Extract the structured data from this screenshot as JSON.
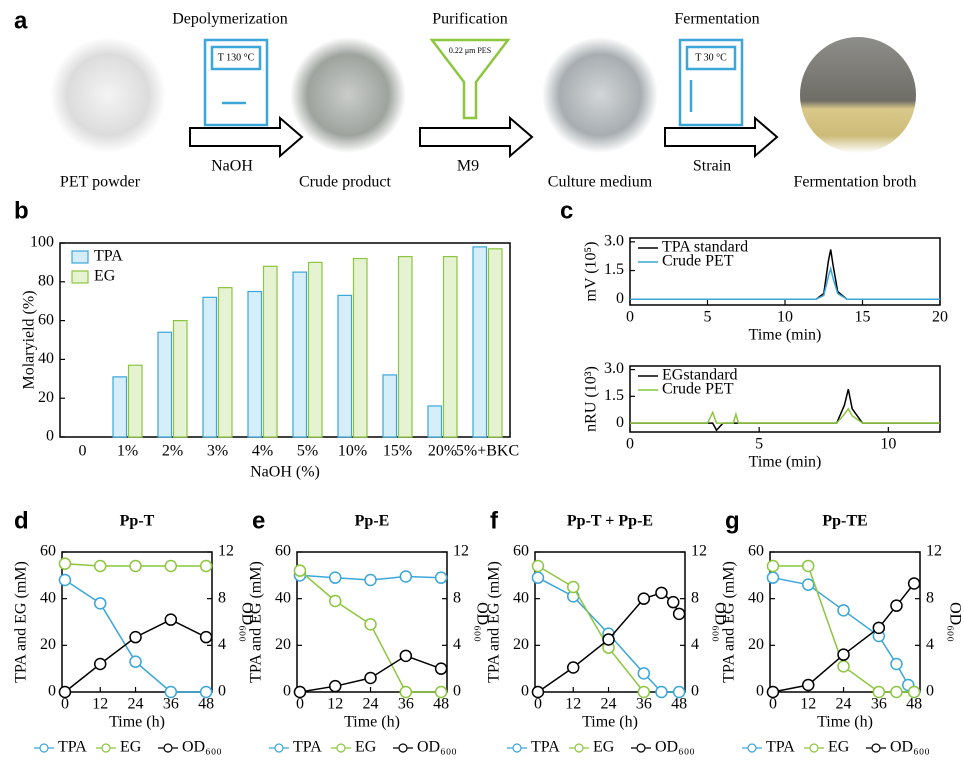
{
  "workflow": {
    "panel": "a",
    "steps": [
      {
        "label": "Depolymerization",
        "device": "T 130 °C",
        "reagent": "NaOH"
      },
      {
        "label": "Purification",
        "device": "0.22 μm PES",
        "reagent": "M9"
      },
      {
        "label": "Fermentation",
        "device": "T 30 °C",
        "reagent": "Strain"
      }
    ],
    "samples": [
      "PET powder",
      "Crude product",
      "Culture medium",
      "Fermentation broth"
    ]
  },
  "chart_data": [
    {
      "type": "bar",
      "panel": "b",
      "categories": [
        "0",
        "1%",
        "2%",
        "3%",
        "4%",
        "5%",
        "10%",
        "15%",
        "20%",
        "5%+BKC"
      ],
      "series": [
        {
          "name": "TPA",
          "color": "#3aa6d9",
          "fill": "#d6eef9",
          "values": [
            0,
            31,
            54,
            72,
            75,
            85,
            73,
            32,
            16,
            98
          ]
        },
        {
          "name": "EG",
          "color": "#8cc63f",
          "fill": "#e6f3d2",
          "values": [
            0,
            37,
            60,
            77,
            88,
            90,
            92,
            93,
            93,
            97
          ]
        }
      ],
      "ylim": [
        0,
        100
      ],
      "yticks": [
        0,
        20,
        40,
        60,
        80,
        100
      ],
      "ylabel": "Molaryield (%)",
      "xlabel": "NaOH (%)",
      "legend": "upper left"
    },
    {
      "type": "line",
      "panel": "c",
      "x": [
        0,
        12,
        12.5,
        12.8,
        12.95,
        13.1,
        13.4,
        14,
        20
      ],
      "series": [
        {
          "name": "TPA standard",
          "color": "#000000",
          "values": [
            0,
            0,
            0.3,
            2.0,
            2.6,
            1.8,
            0.4,
            0,
            0
          ]
        },
        {
          "name": "Crude PET",
          "color": "#3aa6d9",
          "values": [
            0,
            0,
            0.2,
            1.2,
            1.6,
            1.1,
            0.3,
            0,
            0
          ]
        }
      ],
      "xlim": [
        0,
        20
      ],
      "xticks": [
        0,
        5,
        10,
        15,
        20
      ],
      "ylim": [
        -0.3,
        3.2
      ],
      "yticks": [
        0,
        1.5,
        {
          "value": 3,
          "label": "3.0"
        }
      ],
      "xlabel": "Time (min)",
      "ylabel": "mV (10⁵)",
      "legend": "upper left"
    },
    {
      "type": "line",
      "x": [
        0,
        3.0,
        3.2,
        3.35,
        3.6,
        4.0,
        4.1,
        4.2,
        8.0,
        8.3,
        8.45,
        8.6,
        9.0,
        12
      ],
      "series": [
        {
          "name": "EGstandard",
          "color": "#000000",
          "values": [
            0,
            0,
            0,
            -0.4,
            0,
            0,
            0,
            0,
            0,
            1.0,
            1.9,
            0.8,
            0,
            0
          ]
        },
        {
          "name": "Crude PET",
          "color": "#8cc63f",
          "values": [
            0,
            0,
            0.6,
            0,
            0,
            0,
            0.5,
            0,
            0,
            0.5,
            0.8,
            0.4,
            0,
            0
          ]
        }
      ],
      "xlim": [
        0,
        12
      ],
      "xticks": [
        0,
        5,
        10
      ],
      "ylim": [
        -0.5,
        3.2
      ],
      "yticks": [
        0,
        1.5,
        {
          "value": 3,
          "label": "3.0"
        }
      ],
      "xlabel": "Time (min)",
      "ylabel": "nRU (10³)",
      "legend": "upper left"
    },
    {
      "type": "line-markers",
      "panel": "d",
      "title": "Pp-T",
      "series": [
        {
          "name": "TPA",
          "color": "#3aa6d9",
          "x": [
            0,
            12,
            24,
            36,
            48
          ],
          "values": [
            48,
            38,
            13,
            0,
            0
          ]
        },
        {
          "name": "EG",
          "color": "#8cc63f",
          "x": [
            0,
            12,
            24,
            36,
            48
          ],
          "values": [
            55,
            54,
            54,
            54,
            54
          ]
        },
        {
          "name": "OD₆₀₀",
          "color": "#000000",
          "axis": "y2",
          "x": [
            0,
            12,
            24,
            36,
            48
          ],
          "values": [
            0,
            2.4,
            4.7,
            6.2,
            4.7
          ]
        }
      ],
      "xlim": [
        -1,
        50
      ],
      "xticks": [
        0,
        12,
        24,
        36,
        48
      ],
      "ylim": [
        0,
        60
      ],
      "yticks": [
        0,
        20,
        40,
        60
      ],
      "y2lim": [
        0,
        12
      ],
      "y2ticks": [
        0,
        4,
        8,
        12
      ],
      "xlabel": "Time (h)",
      "ylabel": "TPA and EG (mM)",
      "y2label": "OD₆₀₀",
      "legend": "below"
    },
    {
      "type": "line-markers",
      "panel": "e",
      "title": "Pp-E",
      "series": [
        {
          "name": "TPA",
          "color": "#3aa6d9",
          "x": [
            0,
            12,
            24,
            36,
            48
          ],
          "values": [
            50,
            49,
            48,
            49.5,
            49
          ]
        },
        {
          "name": "EG",
          "color": "#8cc63f",
          "x": [
            0,
            12,
            24,
            36,
            48
          ],
          "values": [
            52,
            39,
            29,
            0,
            0
          ]
        },
        {
          "name": "OD₆₀₀",
          "color": "#000000",
          "axis": "y2",
          "x": [
            0,
            12,
            24,
            36,
            48
          ],
          "values": [
            0,
            0.5,
            1.2,
            3.1,
            2
          ]
        }
      ],
      "xlim": [
        -1,
        50
      ],
      "xticks": [
        0,
        12,
        24,
        36,
        48
      ],
      "ylim": [
        0,
        60
      ],
      "yticks": [
        0,
        20,
        40,
        60
      ],
      "y2lim": [
        0,
        12
      ],
      "y2ticks": [
        0,
        4,
        8,
        12
      ],
      "xlabel": "Time (h)",
      "ylabel": "TPA and EG (mM)",
      "y2label": "OD₆₀₀",
      "legend": "below"
    },
    {
      "type": "line-markers",
      "panel": "f",
      "title": "Pp-T + Pp-E",
      "series": [
        {
          "name": "TPA",
          "color": "#3aa6d9",
          "x": [
            0,
            12,
            24,
            36,
            42,
            48
          ],
          "values": [
            49,
            41,
            25,
            8,
            0,
            0
          ]
        },
        {
          "name": "EG",
          "color": "#8cc63f",
          "x": [
            0,
            12,
            24,
            36
          ],
          "values": [
            54,
            45,
            19,
            0
          ]
        },
        {
          "name": "OD₆₀₀",
          "color": "#000000",
          "axis": "y2",
          "x": [
            0,
            12,
            24,
            36,
            42,
            46,
            48
          ],
          "values": [
            0,
            2.1,
            4.5,
            8,
            8.5,
            7.7,
            6.7
          ]
        }
      ],
      "xlim": [
        -1,
        50
      ],
      "xticks": [
        0,
        12,
        24,
        36,
        48
      ],
      "ylim": [
        0,
        60
      ],
      "yticks": [
        0,
        20,
        40,
        60
      ],
      "y2lim": [
        0,
        12
      ],
      "y2ticks": [
        0,
        4,
        8,
        12
      ],
      "xlabel": "Time (h)",
      "ylabel": "TPA and EG (mM)",
      "y2label": "OD₆₀₀",
      "legend": "below"
    },
    {
      "type": "line-markers",
      "panel": "g",
      "title": "Pp-TE",
      "series": [
        {
          "name": "TPA",
          "color": "#3aa6d9",
          "x": [
            0,
            12,
            24,
            36,
            42,
            46,
            48
          ],
          "values": [
            49,
            46,
            35,
            24,
            12,
            3,
            0
          ]
        },
        {
          "name": "EG",
          "color": "#8cc63f",
          "x": [
            0,
            12,
            24,
            36,
            42,
            48
          ],
          "values": [
            54,
            54,
            11,
            0,
            0,
            0
          ]
        },
        {
          "name": "OD₆₀₀",
          "color": "#000000",
          "axis": "y2",
          "x": [
            0,
            12,
            24,
            36,
            42,
            48
          ],
          "values": [
            0,
            0.6,
            3.2,
            5.5,
            7.4,
            9.3
          ]
        }
      ],
      "xlim": [
        -1,
        50
      ],
      "xticks": [
        0,
        12,
        24,
        36,
        48
      ],
      "ylim": [
        0,
        60
      ],
      "yticks": [
        0,
        20,
        40,
        60
      ],
      "y2lim": [
        0,
        12
      ],
      "y2ticks": [
        0,
        4,
        8,
        12
      ],
      "xlabel": "Time (h)",
      "ylabel": "TPA and EG (mM)",
      "y2label": "OD₆₀₀",
      "legend": "below"
    }
  ]
}
